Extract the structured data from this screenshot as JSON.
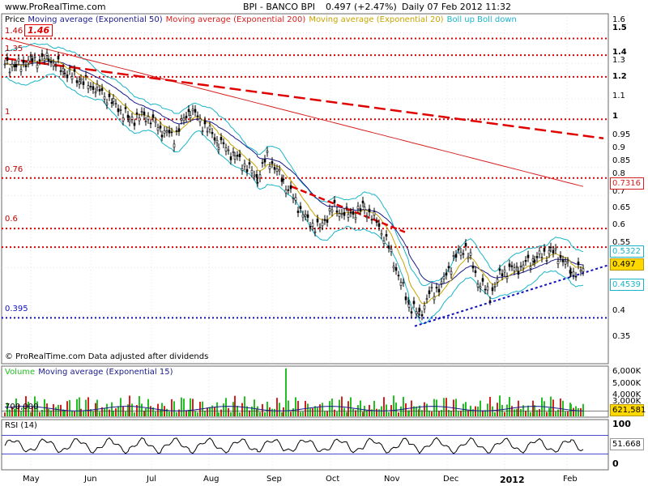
{
  "header": {
    "site": "www.ProRealTime.com",
    "symbol": "BPI - BANCO BPI",
    "price_change": "0.497 (+2.47%)",
    "period": "Daily  07 Feb 2012 11:32"
  },
  "price_panel": {
    "legend": [
      "Price",
      "Moving average (Exponential 50)",
      "Moving average (Exponential 200)",
      "Moving average (Exponential 20)",
      "Boll up Boll down"
    ],
    "footer": "© ProRealTime.com  Data adjusted after dividends",
    "level_labels": [
      "1.46",
      "1.35",
      "1",
      "0.76",
      "0.6",
      "0.395"
    ],
    "highlight_label": "1.46",
    "tags": {
      "ma200": "0.7316",
      "boll_up": "0.5322",
      "price": "0.497",
      "boll_down": "0.4539"
    },
    "yticks": [
      "1.6",
      "1.5",
      "1.4",
      "1.3",
      "1.2",
      "1.1",
      "1",
      "0.95",
      "0.9",
      "0.85",
      "0.8",
      "0.75",
      "0.7",
      "0.65",
      "0.6",
      "0.55",
      "0.5",
      "0.45",
      "0.4",
      "0.35"
    ]
  },
  "volume_panel": {
    "legend": [
      "Volume",
      "Moving average (Exponential 15)"
    ],
    "ref_label": "700,000",
    "yticks": [
      "6,000K",
      "5,000K",
      "4,000K",
      "3,000K"
    ],
    "tag": "621,581"
  },
  "rsi_panel": {
    "legend": "RSI (14)",
    "yticks": [
      "100",
      "0"
    ],
    "tag": "51.668"
  },
  "x_axis": {
    "labels": [
      "May",
      "Jun",
      "Jul",
      "Aug",
      "Sep",
      "Oct",
      "Nov",
      "Dec",
      "2012",
      "Feb"
    ]
  },
  "colors": {
    "ma50": "#1a1a8c",
    "ma200": "#d62020",
    "ma20": "#c8a400",
    "boll": "#19b4c8",
    "level_line": "#e00000",
    "support_line": "#1010c0",
    "volume_up": "#22c022",
    "volume_down": "#d62020",
    "rsi": "#000000",
    "panel_border": "#6a6a6a",
    "grid": "#c8c8c8"
  },
  "chart_data": [
    {
      "type": "candlestick",
      "title": "BPI - BANCO BPI",
      "x_range": [
        "2011-05",
        "2012-02"
      ],
      "ylim": [
        0.32,
        1.62
      ],
      "horizontal_levels": [
        1.46,
        1.35,
        1.22,
        1.0,
        0.76,
        0.6,
        0.55,
        0.395
      ],
      "last_price": 0.497,
      "series": [
        {
          "name": "Price",
          "x": [
            "May",
            "May",
            "Jun",
            "Jun",
            "Jul",
            "Jul",
            "Aug",
            "Aug",
            "Sep",
            "Sep",
            "Oct",
            "Oct",
            "Nov",
            "Nov",
            "Dec",
            "Dec",
            "Jan",
            "Jan",
            "Feb"
          ],
          "values": [
            1.3,
            1.34,
            1.2,
            1.1,
            1.0,
            1.05,
            0.95,
            0.88,
            0.8,
            0.72,
            0.66,
            0.64,
            0.5,
            0.4,
            0.45,
            0.55,
            0.47,
            0.52,
            0.497
          ]
        },
        {
          "name": "Moving average (Exponential 50)",
          "last": 0.51
        },
        {
          "name": "Moving average (Exponential 200)",
          "last": 0.7316
        },
        {
          "name": "Moving average (Exponential 20)",
          "last": 0.505
        },
        {
          "name": "Boll up Boll down",
          "last_up": 0.5322,
          "last_down": 0.4539
        }
      ]
    },
    {
      "type": "bar",
      "title": "Volume",
      "series": [
        {
          "name": "Volume"
        },
        {
          "name": "Moving average (Exponential 15)"
        }
      ],
      "last": 621581,
      "ylim": [
        0,
        6500000
      ]
    },
    {
      "type": "line",
      "title": "RSI (14)",
      "ylim": [
        0,
        100
      ],
      "last": 51.668
    }
  ]
}
